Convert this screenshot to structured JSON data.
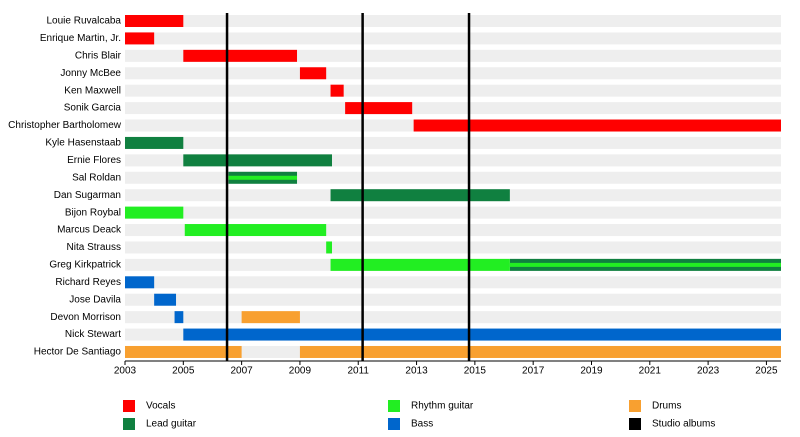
{
  "chart_data": {
    "type": "timeline",
    "categories": [
      "Louie Ruvalcaba",
      "Enrique Martin, Jr.",
      "Chris Blair",
      "Jonny McBee",
      "Ken Maxwell",
      "Sonik Garcia",
      "Christopher Bartholomew",
      "Kyle Hasenstaab",
      "Ernie Flores",
      "Sal Roldan",
      "Dan Sugarman",
      "Bijon Roybal",
      "Marcus Deack",
      "Nita Strauss",
      "Greg Kirkpatrick",
      "Richard Reyes",
      "Jose Davila",
      "Devon Morrison",
      "Nick Stewart",
      "Hector De Santiago"
    ],
    "series": [
      {
        "name": "Vocals",
        "color": "#ff0000",
        "values": [
          [
            [
              2003,
              2005
            ]
          ],
          [
            [
              2003,
              2004
            ]
          ],
          [
            [
              2005,
              2008.9
            ]
          ],
          [
            [
              2009,
              2009.9
            ]
          ],
          [
            [
              2010.05,
              2010.5
            ]
          ],
          [
            [
              2010.55,
              2012.85
            ]
          ],
          [
            [
              2012.9,
              2025.5
            ]
          ],
          [],
          [],
          [],
          [],
          [],
          [],
          [],
          [],
          [],
          [],
          [],
          [],
          []
        ]
      },
      {
        "name": "Lead guitar",
        "color": "#108040",
        "values": [
          [],
          [],
          [],
          [],
          [],
          [],
          [],
          [
            [
              2003,
              2005
            ]
          ],
          [
            [
              2005,
              2010.1
            ]
          ],
          [
            [
              2006.55,
              2008.9
            ]
          ],
          [
            [
              2010.05,
              2016.2
            ]
          ],
          [],
          [],
          [],
          [
            [
              2016.2,
              2025.5
            ]
          ],
          [],
          [],
          [],
          [],
          []
        ]
      },
      {
        "name": "Rhythm guitar",
        "color": "#22ee22",
        "values": [
          [],
          [],
          [],
          [],
          [],
          [],
          [],
          [],
          [],
          [
            [
              2006.55,
              2008.9
            ]
          ],
          [],
          [
            [
              2003,
              2005
            ]
          ],
          [
            [
              2005.05,
              2009.9
            ]
          ],
          [
            [
              2009.9,
              2010.1
            ]
          ],
          [
            [
              2010.05,
              2016.2
            ],
            [
              2016.2,
              2025.5
            ]
          ],
          [],
          [],
          [],
          [],
          []
        ]
      },
      {
        "name": "Bass",
        "color": "#0066cc",
        "values": [
          [],
          [],
          [],
          [],
          [],
          [],
          [],
          [],
          [],
          [],
          [],
          [],
          [],
          [],
          [],
          [
            [
              2003,
              2004
            ]
          ],
          [
            [
              2004,
              2004.75
            ]
          ],
          [
            [
              2004.7,
              2005
            ]
          ],
          [
            [
              2005,
              2025.5
            ]
          ],
          []
        ]
      },
      {
        "name": "Drums",
        "color": "#f8a030",
        "values": [
          [],
          [],
          [],
          [],
          [],
          [],
          [],
          [],
          [],
          [],
          [],
          [],
          [],
          [],
          [],
          [],
          [],
          [
            [
              2007,
              2009
            ]
          ],
          [],
          [
            [
              2003,
              2007
            ],
            [
              2009,
              2025.5
            ]
          ]
        ]
      }
    ],
    "albums": {
      "name": "Studio albums",
      "color": "#000000",
      "values": [
        2006.5,
        2011.15,
        2014.8
      ]
    },
    "xlim": [
      2003,
      2025.5
    ],
    "xticks": [
      2003,
      2005,
      2007,
      2009,
      2011,
      2013,
      2015,
      2017,
      2019,
      2021,
      2023,
      2025
    ]
  }
}
